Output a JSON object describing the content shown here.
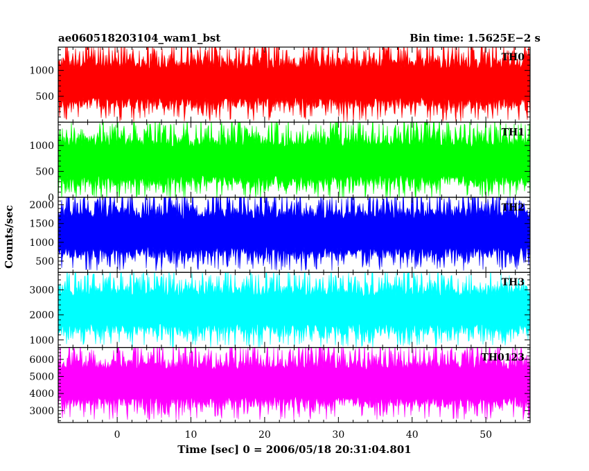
{
  "chart_data": {
    "type": "line",
    "title_left": "ae060518203104_wam1_bst",
    "title_right": "Bin time: 1.5625E−2 s",
    "xlabel": "Time [sec] 0 = 2006/05/18 20:31:04.801",
    "ylabel": "Counts/sec",
    "xlim": [
      -8,
      56
    ],
    "x_data_range": [
      -8,
      56
    ],
    "x_ticks": [
      0,
      10,
      20,
      30,
      40,
      50
    ],
    "x_tick_labels": [
      "0",
      "10",
      "20",
      "30",
      "40",
      "50"
    ],
    "panels": [
      {
        "name": "TH0",
        "color": "#ff0000",
        "ylim": [
          0,
          1450
        ],
        "y_ticks": [
          500,
          1000
        ],
        "y_tick_labels": [
          "500",
          "1000"
        ],
        "mean": 750,
        "low": 150,
        "high": 1400
      },
      {
        "name": "TH1",
        "color": "#00ff00",
        "ylim": [
          0,
          1450
        ],
        "y_ticks": [
          0,
          500,
          1000
        ],
        "y_tick_labels": [
          "0",
          "500",
          "1000"
        ],
        "mean": 700,
        "low": 100,
        "high": 1350
      },
      {
        "name": "TH2",
        "color": "#0000ff",
        "ylim": [
          200,
          2200
        ],
        "y_ticks": [
          500,
          1000,
          1500,
          2000
        ],
        "y_tick_labels": [
          "500",
          "1000",
          "1500",
          "2000"
        ],
        "mean": 1250,
        "low": 450,
        "high": 2150
      },
      {
        "name": "TH3",
        "color": "#00ffff",
        "ylim": [
          700,
          3700
        ],
        "y_ticks": [
          1000,
          2000,
          3000
        ],
        "y_tick_labels": [
          "1000",
          "2000",
          "3000"
        ],
        "mean": 2200,
        "low": 1000,
        "high": 3500
      },
      {
        "name": "TH0123",
        "color": "#ff00ff",
        "ylim": [
          2300,
          6700
        ],
        "y_ticks": [
          3000,
          4000,
          5000,
          6000
        ],
        "y_tick_labels": [
          "3000",
          "4000",
          "5000",
          "6000"
        ],
        "mean": 4600,
        "low": 2800,
        "high": 6400
      }
    ]
  }
}
